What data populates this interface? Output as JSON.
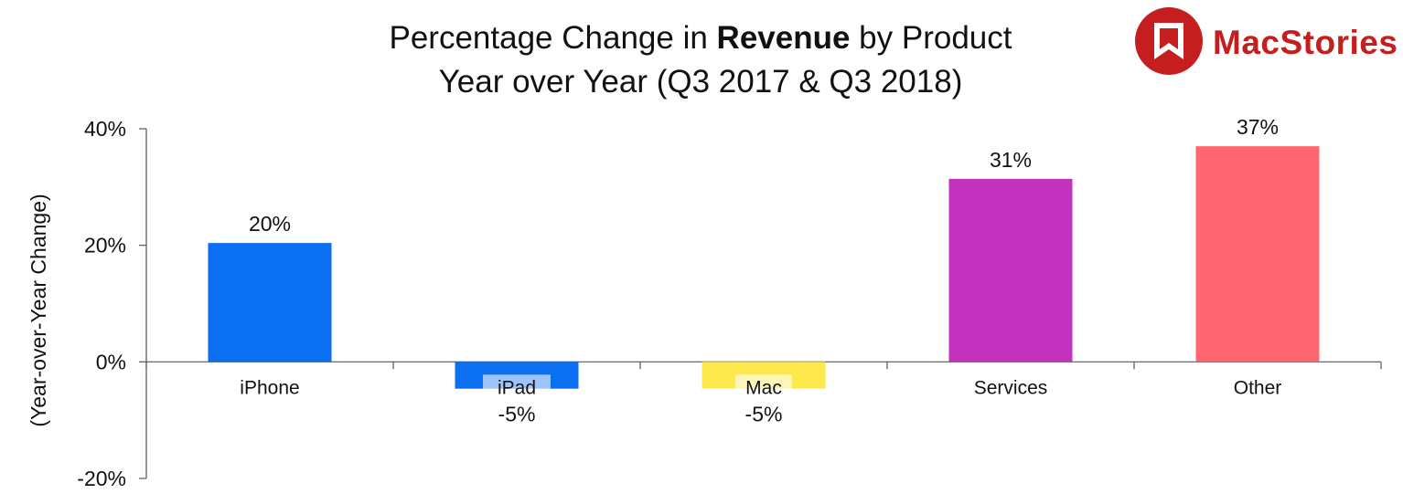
{
  "chart_data": {
    "type": "bar",
    "title_line1_pre": "Percentage Change in ",
    "title_line1_bold": "Revenue",
    "title_line1_post": " by Product",
    "title_line2": "Year over Year (Q3 2017 & Q3 2018)",
    "ylabel": "(Year-over-Year Change)",
    "xlabel": "",
    "ylim": [
      -20,
      40
    ],
    "yticks": [
      -20,
      0,
      20,
      40
    ],
    "ytick_labels": [
      "-20%",
      "0%",
      "20%",
      "40%"
    ],
    "categories": [
      "iPhone",
      "iPad",
      "Mac",
      "Services",
      "Other"
    ],
    "values": [
      20.4,
      -4.6,
      -4.6,
      31.4,
      37.0
    ],
    "value_labels": [
      "20%",
      "-5%",
      "-5%",
      "31%",
      "37%"
    ],
    "colors": [
      "#0a6ff0",
      "#0a6ff0",
      "#fde94c",
      "#c232bf",
      "#ff6670"
    ],
    "grid": false,
    "legend": "none"
  },
  "logo": {
    "text": "MacStories",
    "color": "#c41e1e"
  }
}
